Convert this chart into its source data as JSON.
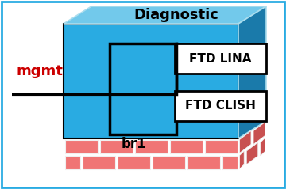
{
  "bg_color": "#ffffff",
  "border_color": "#29abe2",
  "main_blue": "#29abe2",
  "top_blue": "#72c9eb",
  "side_blue": "#1a7aaa",
  "brick_front_color": "#f07575",
  "brick_side_color": "#c85050",
  "brick_mortar": "#f0f0f0",
  "box_outline": "#000000",
  "text_color": "#000000",
  "mgmt_color": "#cc0000",
  "label_diagnostic": "Diagnostic",
  "label_mgmt": "mgmt",
  "label_br1": "br1",
  "label_ftd_lina": "FTD LINA",
  "label_ftd_clish": "FTD CLISH",
  "figsize": [
    3.6,
    2.39
  ],
  "dpi": 100
}
